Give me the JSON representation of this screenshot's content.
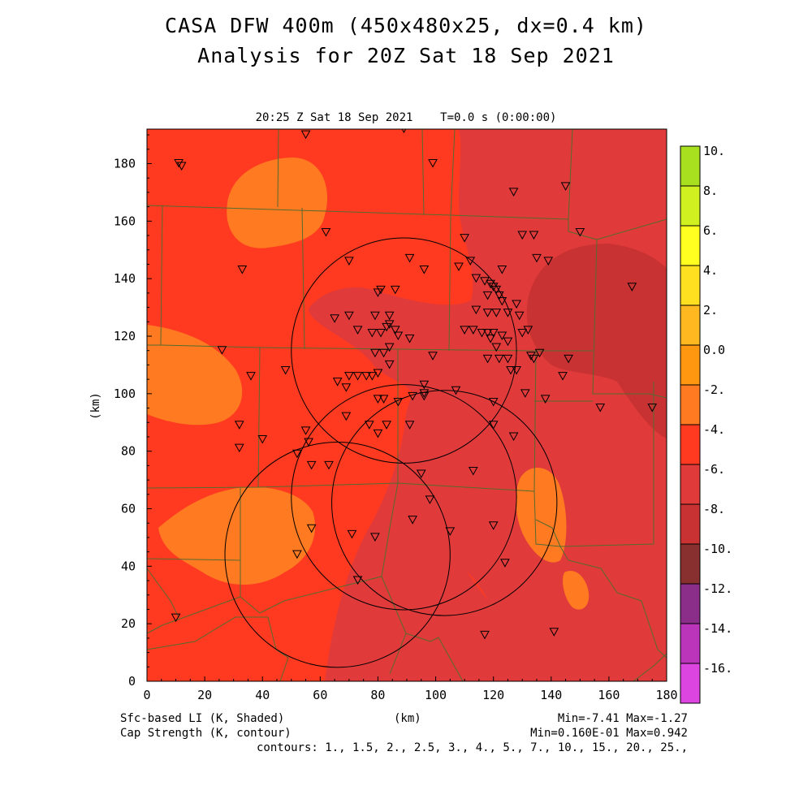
{
  "title": {
    "line1": "CASA DFW 400m (450x480x25, dx=0.4 km)",
    "line2": "Analysis for 20Z Sat 18 Sep 2021"
  },
  "subtitle": "20:25 Z Sat 18 Sep 2021    T=0.0 s (0:00:00)",
  "axes": {
    "xlabel": "(km)",
    "ylabel": "(km)",
    "xlim": [
      0,
      180
    ],
    "ylim": [
      0,
      192
    ],
    "xticks": [
      "0",
      "20",
      "40",
      "60",
      "80",
      "100",
      "120",
      "140",
      "160",
      "180"
    ],
    "yticks": [
      "0",
      "20",
      "40",
      "60",
      "80",
      "100",
      "120",
      "140",
      "160",
      "180"
    ]
  },
  "colorbar": {
    "labels": [
      "10.",
      "8.",
      "6.",
      "4.",
      "2.",
      "0.0",
      "-2.",
      "-4.",
      "-6.",
      "-8.",
      "-10.",
      "-12.",
      "-14.",
      "-16."
    ],
    "colors": [
      "#a8e020",
      "#d0f020",
      "#ffff20",
      "#ffe020",
      "#ffb820",
      "#ff9810",
      "#ff7a20",
      "#ff3a20",
      "#e03a3a",
      "#c83232",
      "#883030",
      "#8a2e8a",
      "#bb35bb",
      "#dd45e0"
    ]
  },
  "footer": {
    "left1": "Sfc-based LI (K, Shaded)",
    "left2": "Cap Strength (K, contour)",
    "center": "(km)",
    "right1": "Min=-7.41 Max=-1.27",
    "right2": "Min=0.160E-01 Max=0.942",
    "right3": "contours: 1., 1.5, 2., 2.5, 3., 4., 5., 7., 10., 15., 20., 25.,"
  },
  "colors": {
    "background_field": "#ff3a20",
    "warmer": "#ff7a20",
    "warm": "#ff9810",
    "cool": "#e03a3a",
    "cooler": "#c83232",
    "county_lines": "#556b2f"
  },
  "radar_rings": [
    {
      "cx": 355,
      "cy": 90.5,
      "r": 39
    },
    {
      "cx": 493,
      "cy": 44,
      "r": 43
    },
    {
      "cx": 318,
      "cy": 76,
      "r": 39
    },
    {
      "cx": 364,
      "cy": 59,
      "r": 39
    }
  ],
  "stations_km": [
    [
      11,
      180
    ],
    [
      12,
      179
    ],
    [
      55,
      190
    ],
    [
      89,
      192
    ],
    [
      99,
      180
    ],
    [
      127,
      170
    ],
    [
      145,
      172
    ],
    [
      150,
      156
    ],
    [
      62,
      156
    ],
    [
      33,
      143
    ],
    [
      70,
      146
    ],
    [
      91,
      147
    ],
    [
      96,
      143
    ],
    [
      108,
      144
    ],
    [
      110,
      154
    ],
    [
      112,
      146
    ],
    [
      114,
      140
    ],
    [
      117,
      139
    ],
    [
      119,
      138
    ],
    [
      120,
      137
    ],
    [
      121,
      136
    ],
    [
      122,
      134
    ],
    [
      123,
      132
    ],
    [
      118,
      134
    ],
    [
      114,
      129
    ],
    [
      118,
      128
    ],
    [
      121,
      128
    ],
    [
      125,
      128
    ],
    [
      128,
      131
    ],
    [
      129,
      127
    ],
    [
      130,
      155
    ],
    [
      134,
      155
    ],
    [
      135,
      147
    ],
    [
      139,
      146
    ],
    [
      168,
      137
    ],
    [
      123,
      143
    ],
    [
      80,
      135
    ],
    [
      81,
      136
    ],
    [
      86,
      136
    ],
    [
      65,
      126
    ],
    [
      70,
      127
    ],
    [
      79,
      127
    ],
    [
      84,
      127
    ],
    [
      84,
      124
    ],
    [
      86,
      122
    ],
    [
      83,
      123
    ],
    [
      81,
      121
    ],
    [
      78,
      121
    ],
    [
      73,
      122
    ],
    [
      87,
      120
    ],
    [
      91,
      119
    ],
    [
      84,
      116
    ],
    [
      82,
      114
    ],
    [
      79,
      114
    ],
    [
      110,
      122
    ],
    [
      113,
      122
    ],
    [
      116,
      121
    ],
    [
      118,
      121
    ],
    [
      120,
      121
    ],
    [
      123,
      120
    ],
    [
      125,
      118
    ],
    [
      119,
      119
    ],
    [
      121,
      116
    ],
    [
      130,
      121
    ],
    [
      132,
      122
    ],
    [
      136,
      114
    ],
    [
      133,
      113
    ],
    [
      134,
      112
    ],
    [
      146,
      112
    ],
    [
      125,
      112
    ],
    [
      122,
      112
    ],
    [
      118,
      112
    ],
    [
      126,
      108
    ],
    [
      128,
      108
    ],
    [
      99,
      113
    ],
    [
      84,
      110
    ],
    [
      26,
      115
    ],
    [
      36,
      106
    ],
    [
      48,
      108
    ],
    [
      66,
      104
    ],
    [
      70,
      106
    ],
    [
      73,
      106
    ],
    [
      69,
      102
    ],
    [
      78,
      106
    ],
    [
      80,
      107
    ],
    [
      76,
      106
    ],
    [
      96,
      103
    ],
    [
      96,
      100
    ],
    [
      96,
      99
    ],
    [
      92,
      99
    ],
    [
      80,
      98
    ],
    [
      82,
      98
    ],
    [
      87,
      97
    ],
    [
      107,
      101
    ],
    [
      120,
      97
    ],
    [
      138,
      98
    ],
    [
      131,
      100
    ],
    [
      157,
      95
    ],
    [
      175,
      95
    ],
    [
      144,
      106
    ],
    [
      32,
      89
    ],
    [
      32,
      81
    ],
    [
      40,
      84
    ],
    [
      55,
      87
    ],
    [
      56,
      83
    ],
    [
      52,
      79
    ],
    [
      57,
      75
    ],
    [
      63,
      75
    ],
    [
      69,
      92
    ],
    [
      77,
      89
    ],
    [
      80,
      86
    ],
    [
      83,
      89
    ],
    [
      91,
      89
    ],
    [
      120,
      89
    ],
    [
      127,
      85
    ],
    [
      113,
      73
    ],
    [
      95,
      72
    ],
    [
      98,
      63
    ],
    [
      92,
      56
    ],
    [
      105,
      52
    ],
    [
      120,
      54
    ],
    [
      124,
      41
    ],
    [
      141,
      17
    ],
    [
      117,
      16
    ],
    [
      71,
      51
    ],
    [
      79,
      50
    ],
    [
      57,
      53
    ],
    [
      52,
      44
    ],
    [
      10,
      22
    ],
    [
      73,
      35
    ]
  ]
}
